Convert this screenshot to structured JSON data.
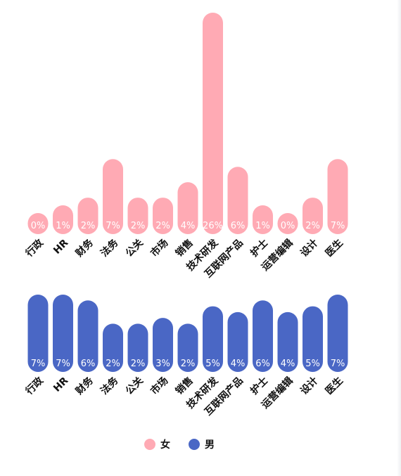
{
  "chart_data": {
    "type": "bar",
    "categories": [
      "行政",
      "HR",
      "财务",
      "法务",
      "公关",
      "市场",
      "销售",
      "技术研发",
      "互联网产品",
      "护士",
      "运营编辑",
      "设计",
      "医生"
    ],
    "series": [
      {
        "name": "女",
        "color": "#ffaab4",
        "values": [
          0,
          1,
          2,
          7,
          2,
          2,
          4,
          26,
          6,
          1,
          0,
          2,
          7
        ],
        "labels": [
          "0%",
          "1%",
          "2%",
          "7%",
          "2%",
          "2%",
          "4%",
          "26%",
          "6%",
          "1%",
          "0%",
          "2%",
          "7%"
        ]
      },
      {
        "name": "男",
        "color": "#4a67c5",
        "values": [
          7,
          7,
          6,
          2,
          2,
          3,
          2,
          5,
          4,
          6,
          4,
          5,
          7
        ],
        "labels": [
          "7%",
          "7%",
          "6%",
          "2%",
          "2%",
          "3%",
          "2%",
          "5%",
          "4%",
          "6%",
          "4%",
          "5%",
          "7%"
        ]
      }
    ],
    "legend_position": "bottom",
    "grid": false,
    "bar_style": "rounded"
  },
  "legend": {
    "female_label": "女",
    "male_label": "男",
    "female_color": "#ffaab4",
    "male_color": "#4a67c5"
  }
}
